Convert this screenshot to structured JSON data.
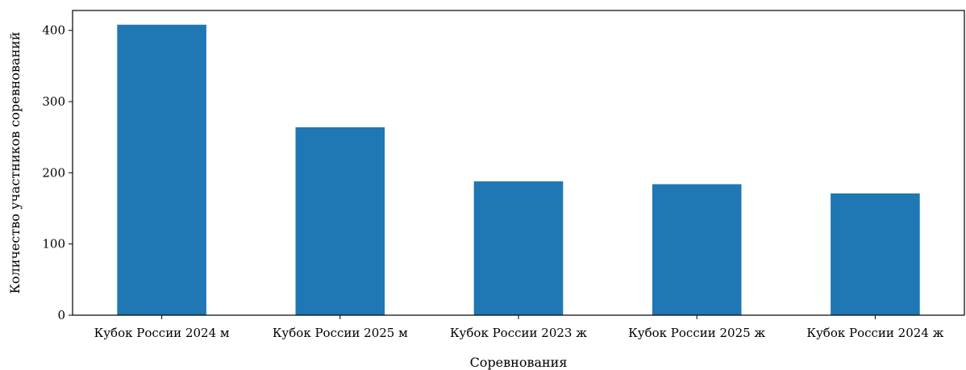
{
  "chart_data": {
    "type": "bar",
    "title": "",
    "xlabel": "Соревнования",
    "ylabel": "Количество участников соревнований",
    "categories": [
      "Кубок России 2024 м",
      "Кубок России 2025 м",
      "Кубок России 2023 ж",
      "Кубок России 2025 ж",
      "Кубок России 2024 ж"
    ],
    "values": [
      408,
      264,
      188,
      184,
      171
    ],
    "ylim": [
      0,
      428
    ],
    "yticks": [
      0,
      100,
      200,
      300,
      400
    ],
    "grid": false,
    "legend": "none",
    "bar_color": "#1f77b4"
  }
}
